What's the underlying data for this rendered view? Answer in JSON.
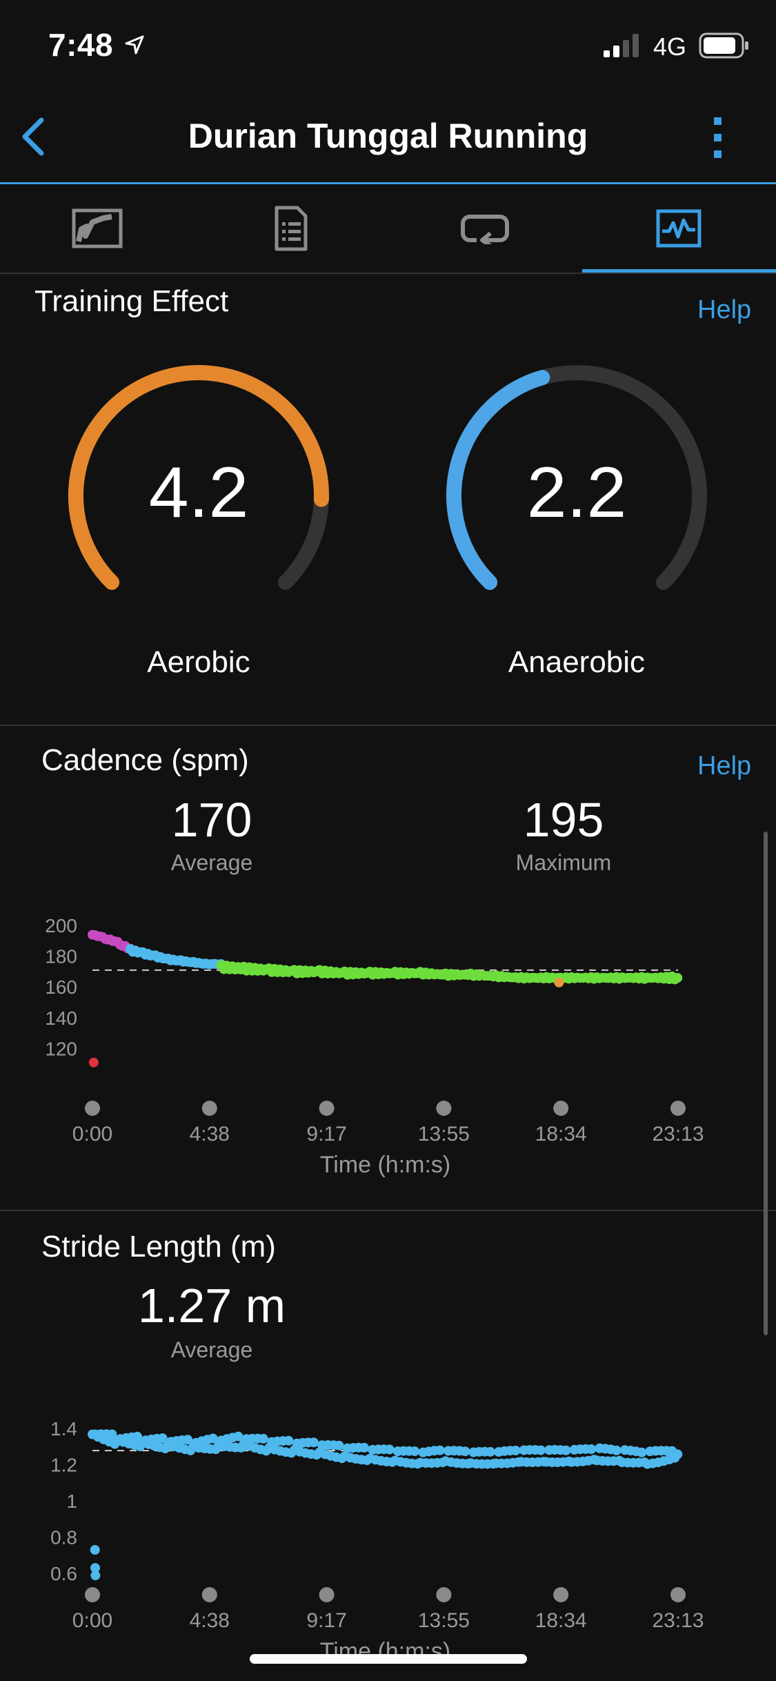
{
  "status_bar": {
    "time": "7:48",
    "network": "4G"
  },
  "nav": {
    "title": "Durian Tunggal Running"
  },
  "tabs": [
    {
      "name": "map",
      "active": false
    },
    {
      "name": "details",
      "active": false
    },
    {
      "name": "laps",
      "active": false
    },
    {
      "name": "charts",
      "active": true
    }
  ],
  "training_effect": {
    "title": "Training Effect",
    "help": "Help",
    "aerobic": {
      "value": "4.2",
      "label": "Aerobic",
      "fraction": 0.84,
      "color": "#e5882d"
    },
    "anaerobic": {
      "value": "2.2",
      "label": "Anaerobic",
      "fraction": 0.44,
      "color": "#4ea6e8"
    }
  },
  "cadence": {
    "title": "Cadence (spm)",
    "help": "Help",
    "average": "170",
    "average_label": "Average",
    "maximum": "195",
    "maximum_label": "Maximum"
  },
  "stride": {
    "title": "Stride Length (m)",
    "average": "1.27 m",
    "average_label": "Average"
  },
  "chart_data": [
    {
      "type": "scatter",
      "title": "Cadence (spm)",
      "xlabel": "Time (h:m:s)",
      "ylabel": "",
      "x_ticks": [
        "0:00",
        "4:38",
        "9:17",
        "13:55",
        "18:34",
        "23:13"
      ],
      "y_ticks": [
        "200",
        "180",
        "160",
        "140",
        "120"
      ],
      "ylim": [
        100,
        200
      ],
      "reference_line": 170,
      "series": [
        {
          "color": "#c64bc0",
          "x": [
            0,
            0.3,
            0.6,
            0.9,
            1.2,
            1.5
          ],
          "y": [
            193,
            192,
            190,
            189,
            186,
            184
          ]
        },
        {
          "color": "#4fb8ec",
          "x": [
            1.5,
            2,
            2.5,
            3,
            3.5,
            4,
            4.5,
            5.1
          ],
          "y": [
            183,
            181,
            179,
            177,
            176,
            175,
            174,
            174
          ]
        },
        {
          "color": "#6ddd3c",
          "x": [
            5.1,
            6,
            7,
            8,
            9,
            10,
            11,
            12,
            13,
            14,
            15,
            16,
            17,
            18,
            19,
            20,
            21,
            22,
            23.2
          ],
          "y": [
            172,
            171,
            170,
            169,
            169,
            168,
            168,
            168,
            168,
            167,
            167,
            166,
            165,
            165,
            165,
            165,
            165,
            165,
            165
          ]
        },
        {
          "color": "#e7973a",
          "x": [
            18.5
          ],
          "y": [
            162
          ]
        },
        {
          "color": "#e0333c",
          "x": [
            0.05
          ],
          "y": [
            110
          ]
        }
      ]
    },
    {
      "type": "scatter",
      "title": "Stride Length (m)",
      "xlabel": "Time (h:m:s)",
      "ylabel": "",
      "x_ticks": [
        "0:00",
        "4:38",
        "9:17",
        "13:55",
        "18:34",
        "23:13"
      ],
      "y_ticks": [
        "1.4",
        "1.2",
        "1",
        "0.8",
        "0.6"
      ],
      "ylim": [
        0.5,
        1.45
      ],
      "reference_line": 1.27,
      "series": [
        {
          "color": "#4fb8ec",
          "x": [
            0,
            1,
            2,
            3,
            4,
            5,
            6,
            7,
            8,
            9,
            10,
            11,
            12,
            13,
            14,
            15,
            16,
            17,
            18,
            19,
            20,
            21,
            22,
            23.2
          ],
          "y": [
            1.36,
            1.33,
            1.32,
            1.31,
            1.3,
            1.31,
            1.32,
            1.3,
            1.29,
            1.28,
            1.26,
            1.25,
            1.24,
            1.23,
            1.24,
            1.23,
            1.23,
            1.24,
            1.24,
            1.24,
            1.25,
            1.24,
            1.23,
            1.25
          ]
        },
        {
          "color": "#4fb8ec",
          "x": [
            0.1,
            0.12
          ],
          "y": [
            0.7,
            0.58
          ]
        }
      ]
    }
  ]
}
